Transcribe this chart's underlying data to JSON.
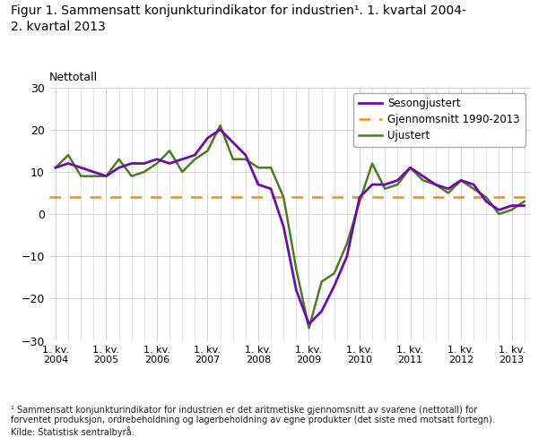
{
  "title": "Figur 1. Sammensatt konjunkturindikator for industrien¹. 1. kvartal 2004-\n2. kvartal 2013",
  "ylabel": "Nettotall",
  "ylim": [
    -30,
    30
  ],
  "yticks": [
    -30,
    -20,
    -10,
    0,
    10,
    20,
    30
  ],
  "footnote": "¹ Sammensatt konjunkturindikator for industrien er det aritmetiske gjennomsnitt av svarene (nettotall) for\nforventet produksjon, ordrebeholdning og lagerbeholdning av egne produkter (det siste med motsatt fortegn).\nKilde: Statistisk sentralbyrå.",
  "avg_value": 4.0,
  "avg_label": "Gjennomsnitt 1990-2013",
  "sesongjustert_color": "#6a0dad",
  "ujustert_color": "#4a7c20",
  "avg_color": "#ff8c00",
  "sesongjustert": [
    11,
    12,
    11,
    10,
    9,
    11,
    12,
    12,
    13,
    12,
    13,
    14,
    18,
    20,
    17,
    14,
    7,
    6,
    -3,
    -18,
    -26,
    -23,
    -17,
    -10,
    4,
    7,
    7,
    8,
    11,
    9,
    7,
    6,
    8,
    7,
    3,
    1,
    2,
    2
  ],
  "ujustert": [
    11,
    14,
    9,
    9,
    9,
    13,
    9,
    10,
    12,
    15,
    10,
    13,
    15,
    21,
    13,
    13,
    11,
    11,
    4,
    -13,
    -27,
    -16,
    -14,
    -7,
    3,
    12,
    6,
    7,
    11,
    8,
    7,
    5,
    8,
    6,
    4,
    0,
    1,
    3
  ],
  "xtick_positions": [
    0,
    4,
    8,
    12,
    16,
    20,
    24,
    28,
    32,
    36
  ],
  "xtick_labels": [
    "1. kv.\n2004",
    "1. kv.\n2005",
    "1. kv.\n2006",
    "1. kv.\n2007",
    "1. kv.\n2008",
    "1. kv.\n2009",
    "1. kv.\n2010",
    "1. kv.\n2011",
    "1. kv.\n2012",
    "1. kv.\n2013"
  ]
}
